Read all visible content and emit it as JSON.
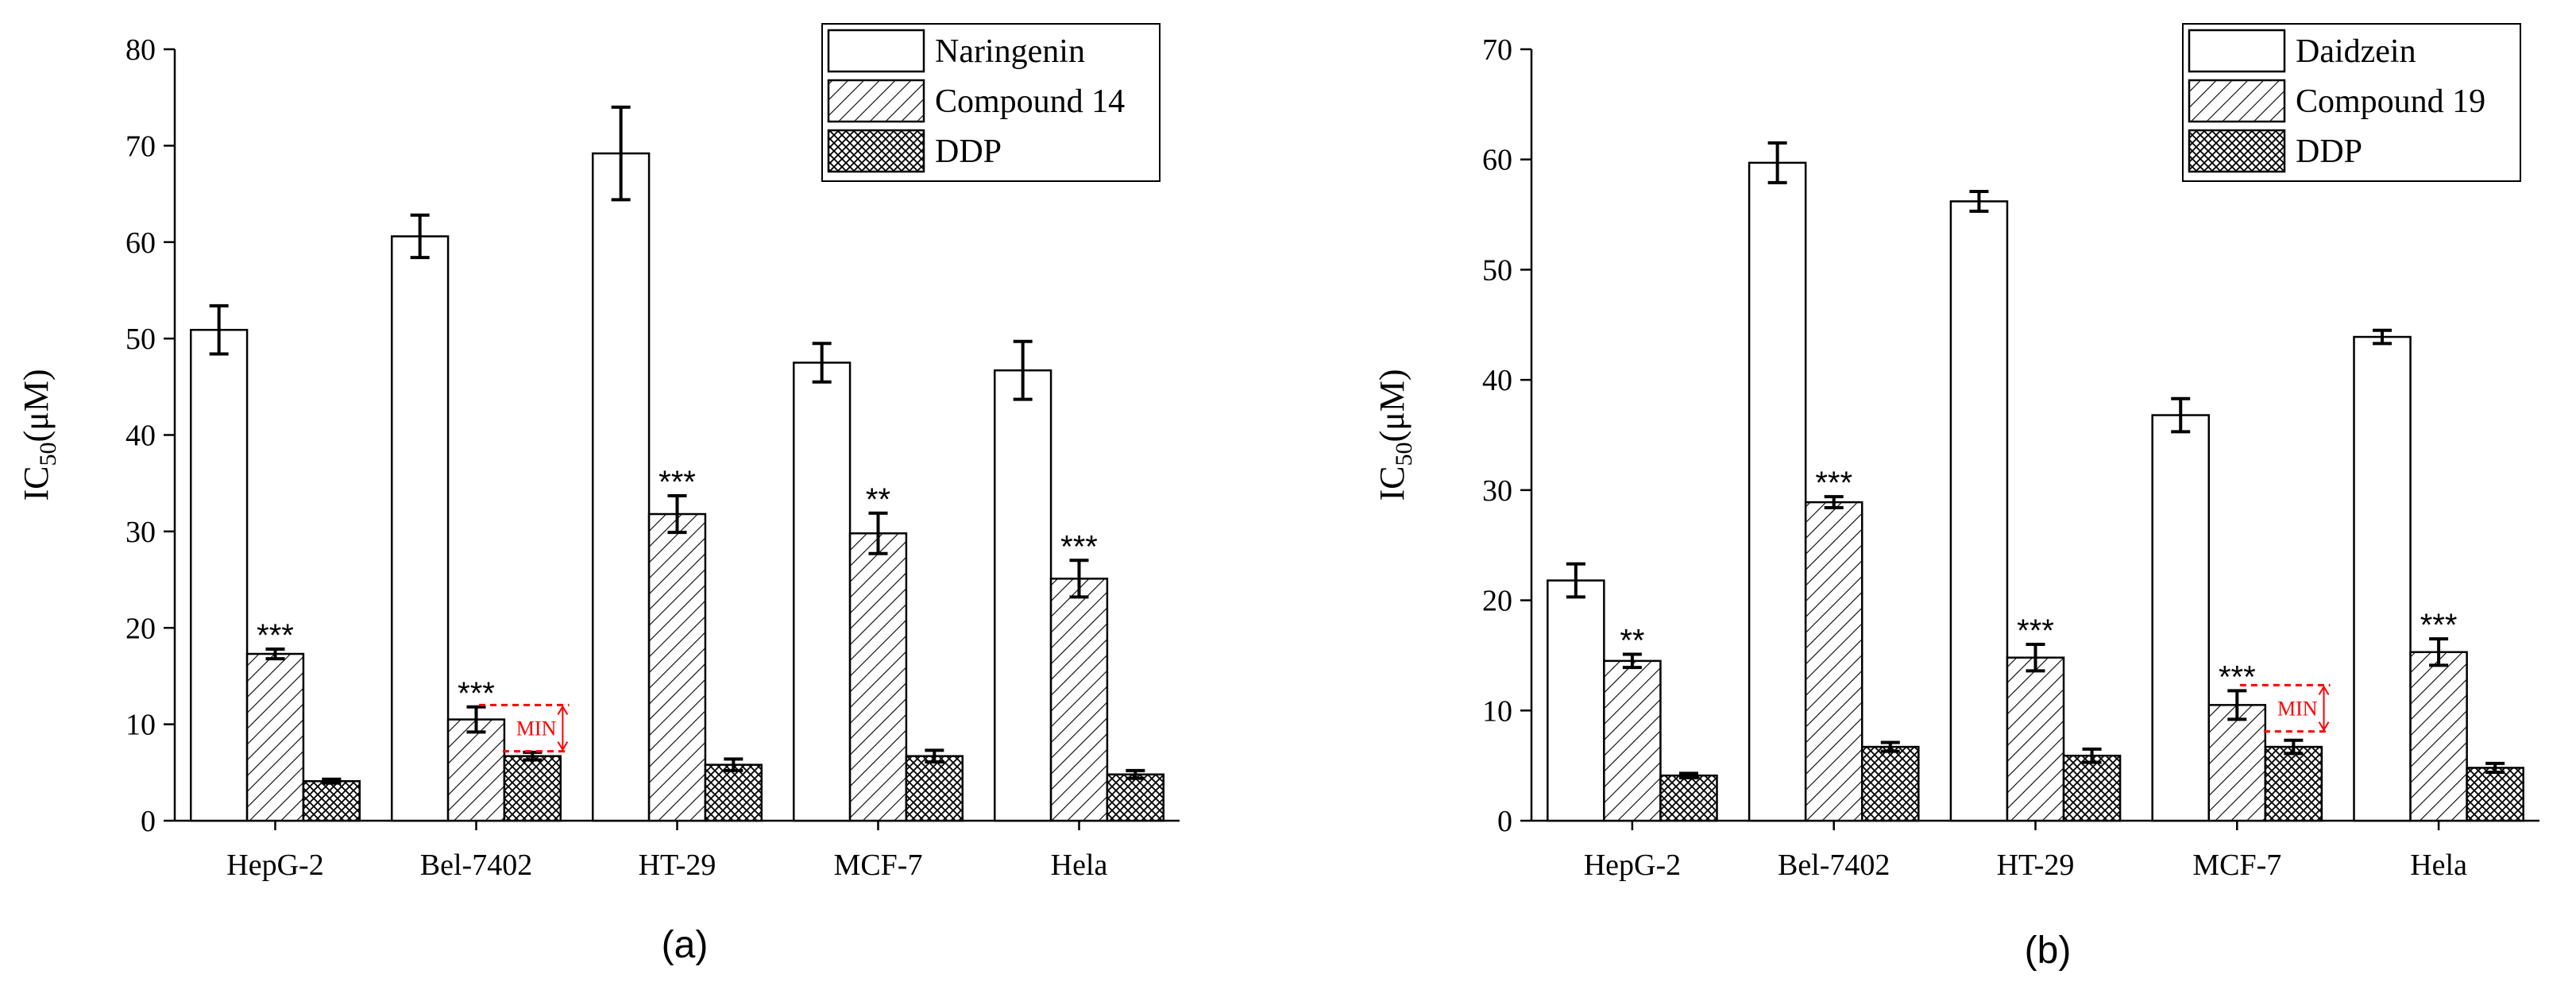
{
  "chart_data": [
    {
      "type": "bar",
      "caption": "(a)",
      "ylabel": "IC",
      "ylabel_sub": "50",
      "ylabel_unit": "(μM)",
      "ylim": [
        0,
        80
      ],
      "yticks": [
        0,
        10,
        20,
        30,
        40,
        50,
        60,
        70,
        80
      ],
      "categories": [
        "HepG-2",
        "Bel-7402",
        "HT-29",
        "MCF-7",
        "Hela"
      ],
      "series": [
        {
          "name": "Naringenin",
          "pattern": "none",
          "values": [
            50.9,
            60.6,
            69.2,
            47.5,
            46.7
          ],
          "errors": [
            2.5,
            2.2,
            4.8,
            2.0,
            3.0
          ]
        },
        {
          "name": "Compound 14",
          "pattern": "hatch",
          "values": [
            17.3,
            10.5,
            31.8,
            29.8,
            25.1
          ],
          "errors": [
            0.5,
            1.3,
            1.9,
            2.1,
            1.9
          ]
        },
        {
          "name": "DDP",
          "pattern": "crosshatch",
          "values": [
            4.1,
            6.7,
            5.8,
            6.7,
            4.8
          ],
          "errors": [
            0.2,
            0.4,
            0.6,
            0.6,
            0.4
          ]
        }
      ],
      "significance": [
        {
          "category": "HepG-2",
          "label": "***"
        },
        {
          "category": "Bel-7402",
          "label": "***"
        },
        {
          "category": "HT-29",
          "label": "***"
        },
        {
          "category": "MCF-7",
          "label": "**"
        },
        {
          "category": "Hela",
          "label": "***"
        }
      ],
      "min_annotation": {
        "category": "Bel-7402",
        "label": "MIN",
        "upper": 12.0,
        "lower": 7.2
      }
    },
    {
      "type": "bar",
      "caption": "(b)",
      "ylabel": "IC",
      "ylabel_sub": "50",
      "ylabel_unit": "(μM)",
      "ylim": [
        0,
        70
      ],
      "yticks": [
        0,
        10,
        20,
        30,
        40,
        50,
        60,
        70
      ],
      "categories": [
        "HepG-2",
        "Bel-7402",
        "HT-29",
        "MCF-7",
        "Hela"
      ],
      "series": [
        {
          "name": "Daidzein",
          "pattern": "none",
          "values": [
            21.8,
            59.7,
            56.2,
            36.8,
            43.9
          ],
          "errors": [
            1.5,
            1.8,
            0.9,
            1.5,
            0.6
          ]
        },
        {
          "name": "Compound 19",
          "pattern": "hatch",
          "values": [
            14.5,
            28.9,
            14.8,
            10.5,
            15.3
          ],
          "errors": [
            0.6,
            0.5,
            1.2,
            1.3,
            1.2
          ]
        },
        {
          "name": "DDP",
          "pattern": "crosshatch",
          "values": [
            4.1,
            6.7,
            5.9,
            6.7,
            4.8
          ],
          "errors": [
            0.2,
            0.4,
            0.6,
            0.6,
            0.4
          ]
        }
      ],
      "significance": [
        {
          "category": "HepG-2",
          "label": "**"
        },
        {
          "category": "Bel-7402",
          "label": "***"
        },
        {
          "category": "HT-29",
          "label": "***"
        },
        {
          "category": "MCF-7",
          "label": "***"
        },
        {
          "category": "Hela",
          "label": "***"
        }
      ],
      "min_annotation": {
        "category": "MCF-7",
        "label": "MIN",
        "upper": 12.3,
        "lower": 8.1
      }
    }
  ]
}
